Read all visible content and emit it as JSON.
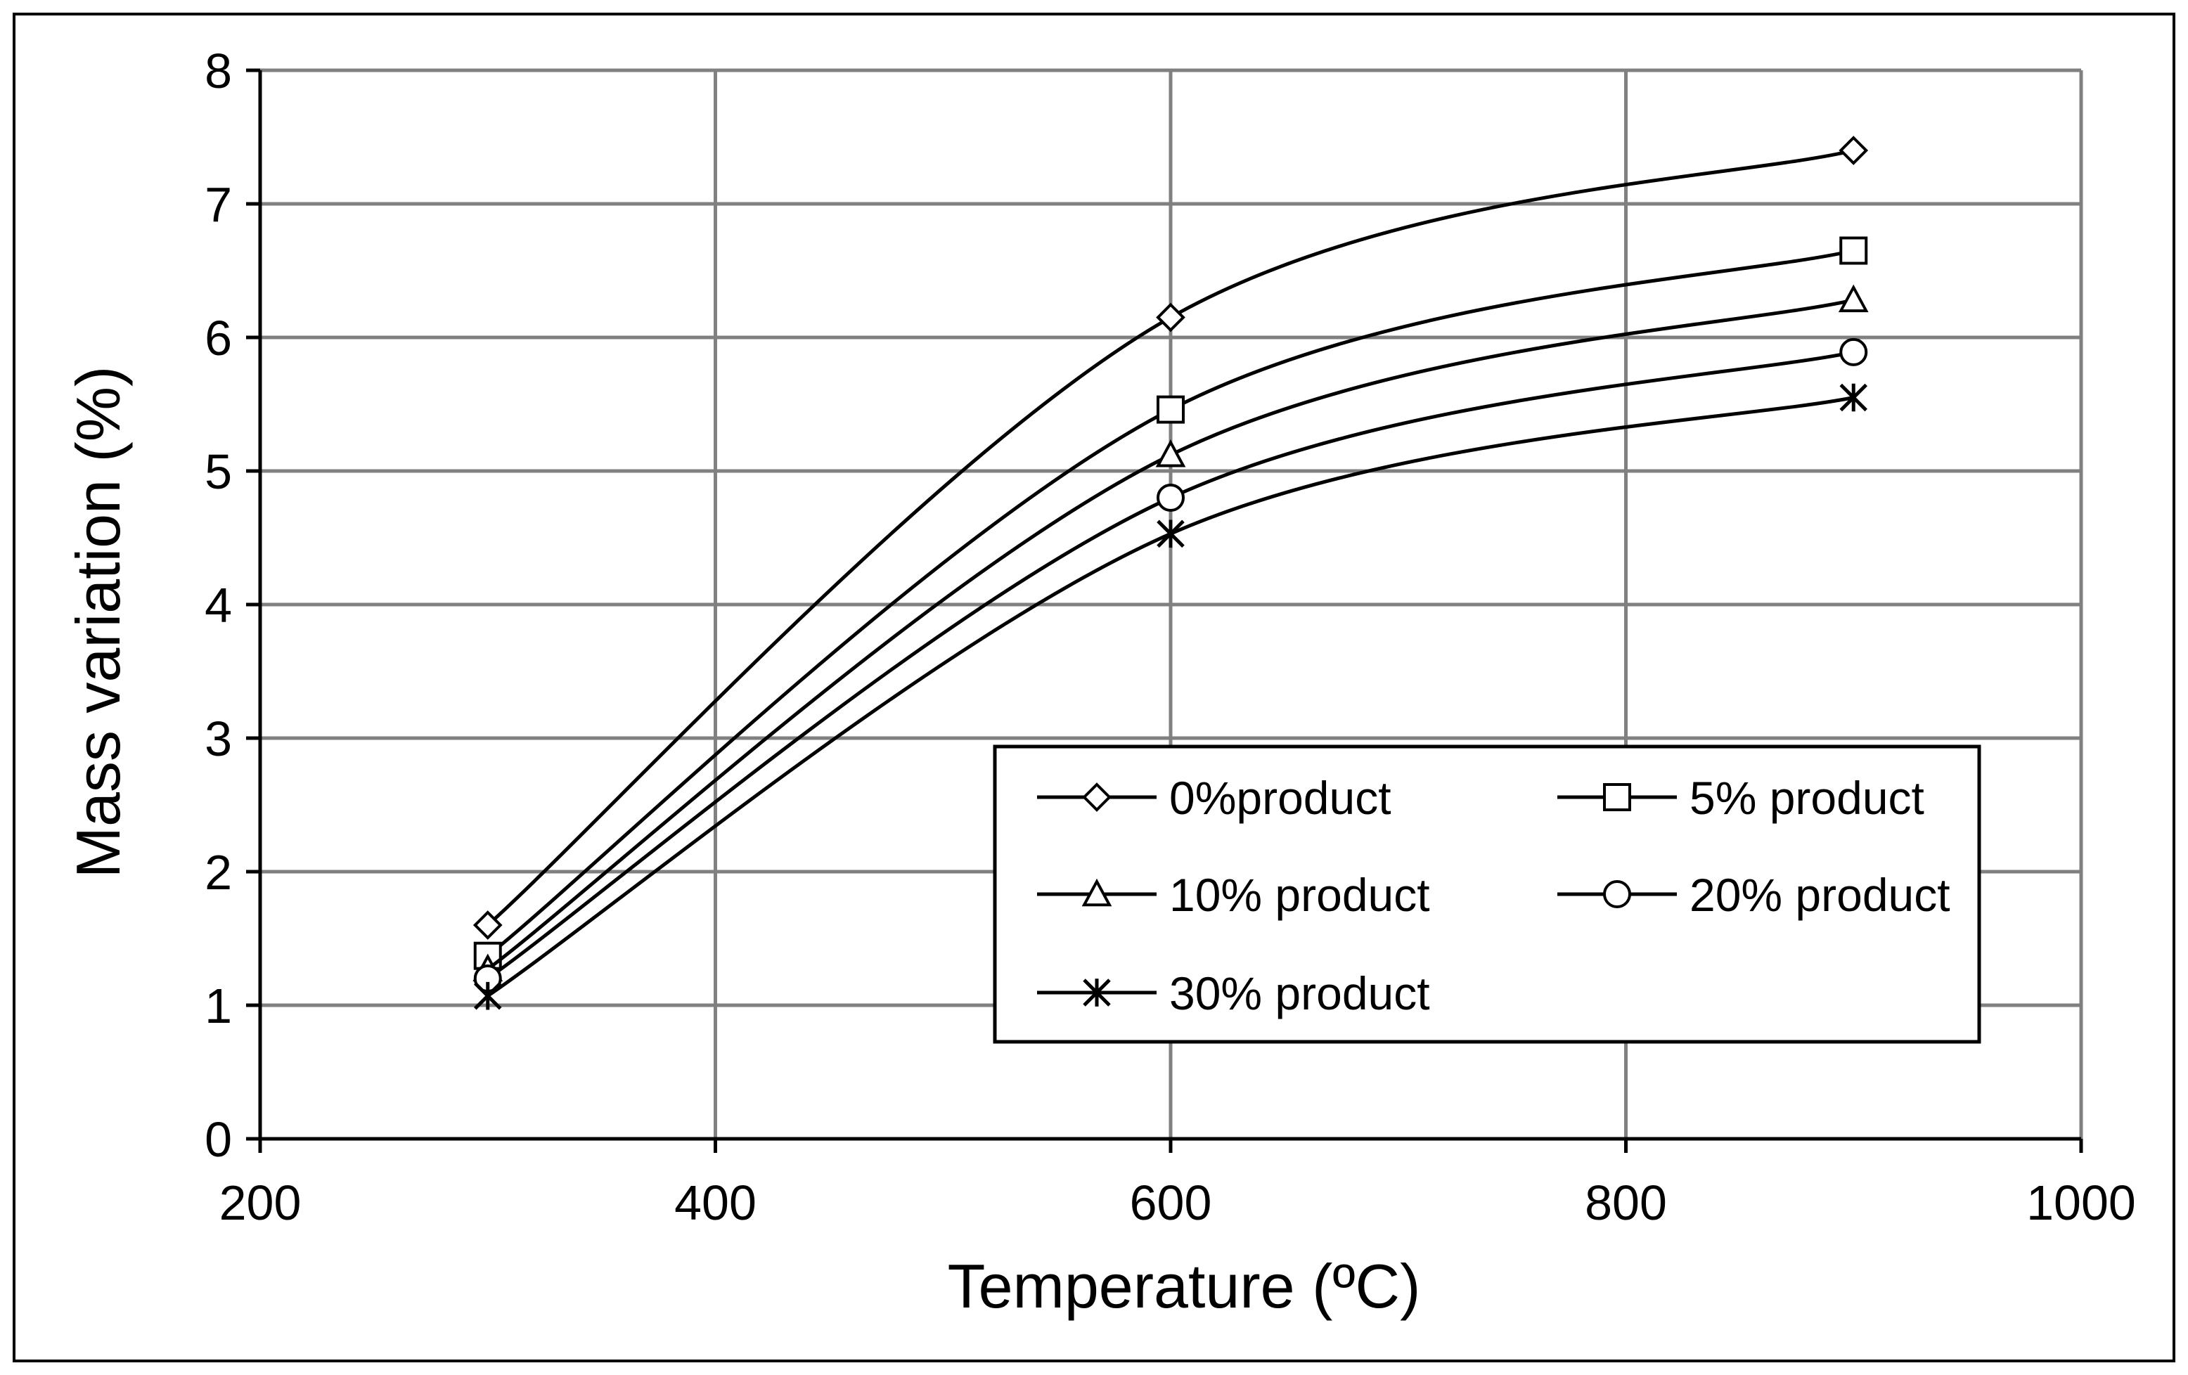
{
  "chart_data": {
    "type": "line",
    "title": "",
    "xlabel": "Temperature (ºC)",
    "ylabel": "Mass variation (%)",
    "xlim": [
      200,
      1000
    ],
    "ylim": [
      0,
      8
    ],
    "xticks": [
      200,
      400,
      600,
      800,
      1000
    ],
    "yticks": [
      0,
      1,
      2,
      3,
      4,
      5,
      6,
      7,
      8
    ],
    "grid": true,
    "legend_position": "bottom-right",
    "x": [
      300,
      600,
      900
    ],
    "series": [
      {
        "name": "0%product",
        "marker": "diamond",
        "values": [
          1.6,
          6.15,
          7.4
        ]
      },
      {
        "name": "5% product",
        "marker": "square",
        "values": [
          1.37,
          5.46,
          6.65
        ]
      },
      {
        "name": "10% product",
        "marker": "triangle",
        "values": [
          1.27,
          5.12,
          6.28
        ]
      },
      {
        "name": "20% product",
        "marker": "circle",
        "values": [
          1.2,
          4.8,
          5.89
        ]
      },
      {
        "name": "30% product",
        "marker": "asterisk",
        "values": [
          1.07,
          4.53,
          5.55
        ]
      }
    ],
    "colors": {
      "line": "#000000",
      "grid": "#808080",
      "frame": "#000000",
      "background": "#ffffff"
    }
  }
}
